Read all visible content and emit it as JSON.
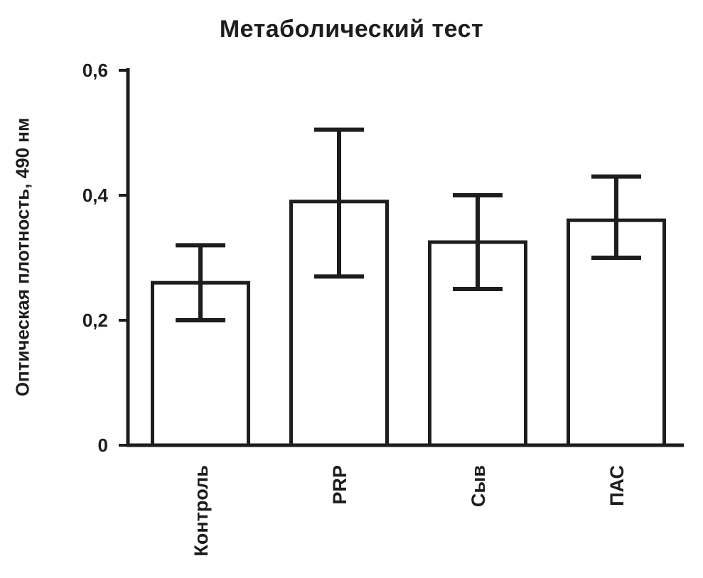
{
  "chart_data": {
    "type": "bar",
    "title": "Метаболический тест",
    "ylabel": "Оптическая плотность, 490 нм",
    "xlabel": "",
    "categories": [
      "Контроль",
      "PRP",
      "Сыв",
      "ПАС"
    ],
    "values": [
      0.26,
      0.39,
      0.325,
      0.36
    ],
    "errors": [
      {
        "low": 0.2,
        "high": 0.32
      },
      {
        "low": 0.27,
        "high": 0.505
      },
      {
        "low": 0.25,
        "high": 0.4
      },
      {
        "low": 0.3,
        "high": 0.43
      }
    ],
    "ylim": [
      0,
      0.6
    ],
    "yticks": [
      {
        "value": 0,
        "label": "0"
      },
      {
        "value": 0.2,
        "label": "0,2"
      },
      {
        "value": 0.4,
        "label": "0,4"
      },
      {
        "value": 0.6,
        "label": "0,6"
      }
    ],
    "grid": false,
    "legend_position": "none",
    "bar_fill": "#ffffff",
    "bar_stroke": "#1d1d1d",
    "axis_color": "#1d1d1d",
    "background_color": "#ffffff"
  }
}
